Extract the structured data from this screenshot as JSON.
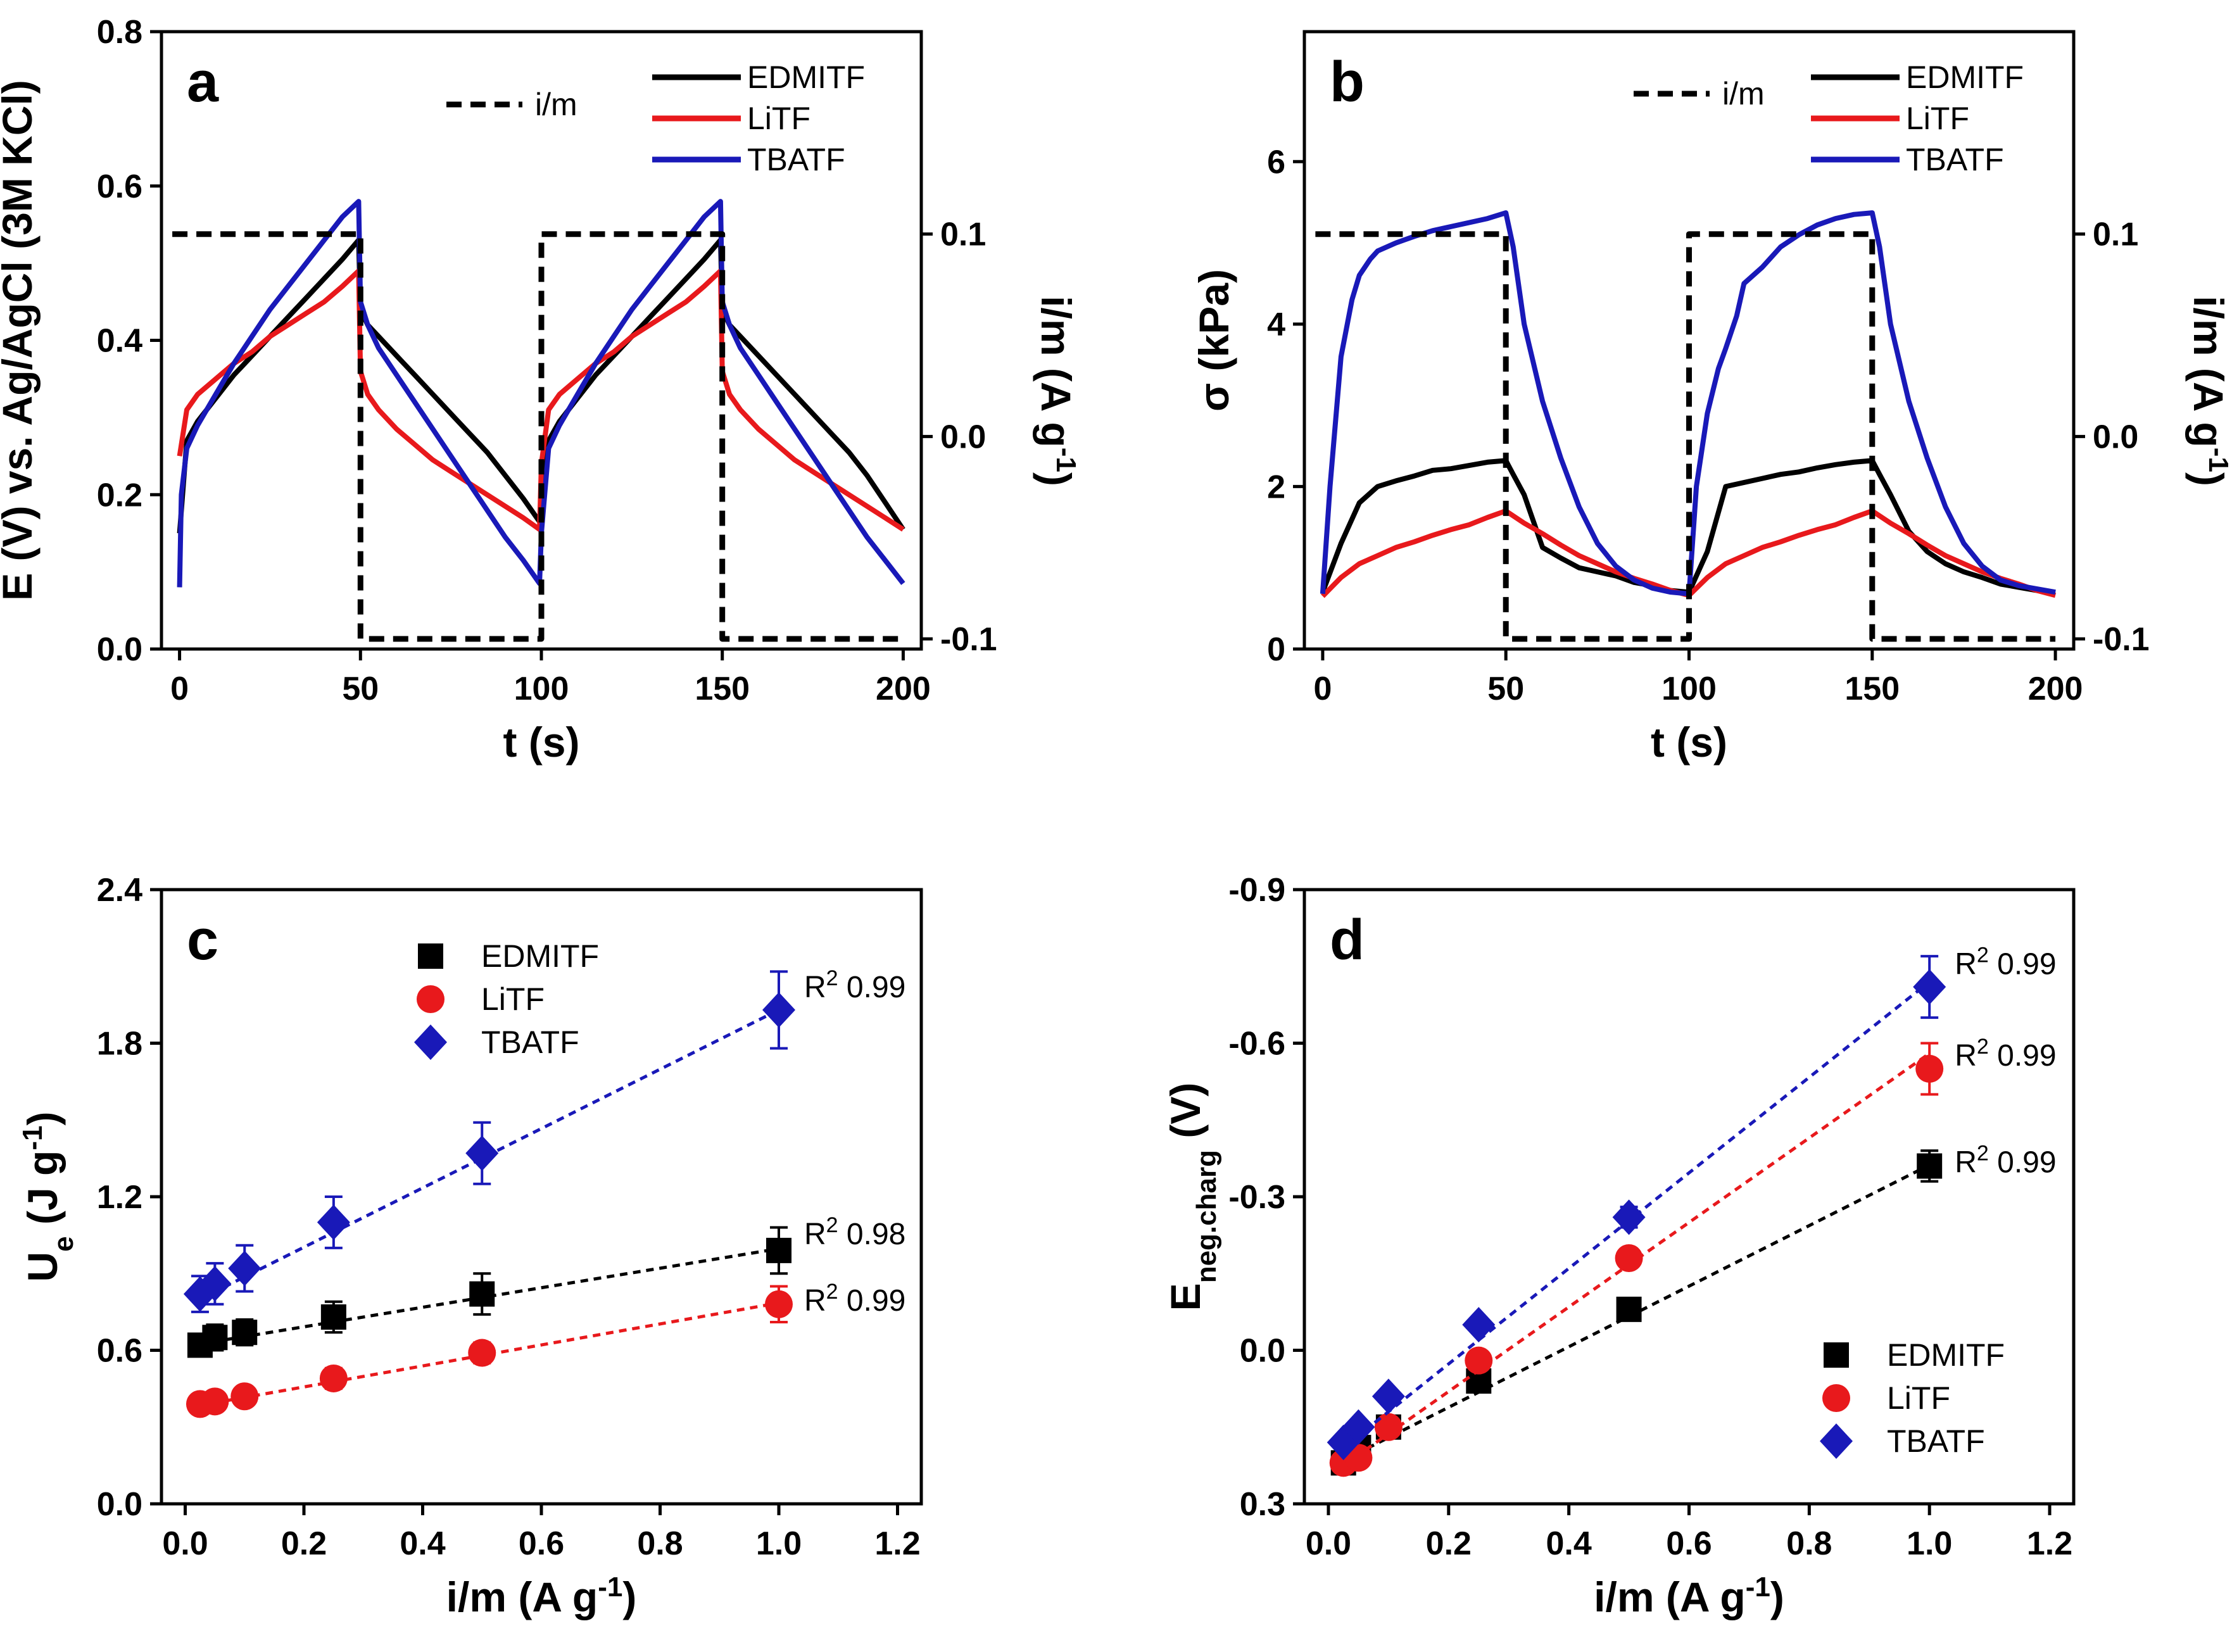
{
  "colors": {
    "EDMITF": "#000000",
    "LiTF": "#e8191c",
    "TBATF": "#1919b8",
    "im": "#000000"
  },
  "chart_data": [
    {
      "type": "line",
      "panel": "a",
      "xlabel": "t (s)",
      "ylabel": "E (V) vs. Ag/AgCl (3M KCl)",
      "y2label_main": "i/m (A g",
      "y2label_sup": "-1",
      "y2label_end": ")",
      "xlim": [
        -5,
        205
      ],
      "ylim": [
        0,
        0.8
      ],
      "y2lim": [
        -0.105,
        0.2
      ],
      "xticks": [
        "0",
        "50",
        "100",
        "150",
        "200"
      ],
      "yticks": [
        "0.0",
        "0.2",
        "0.4",
        "0.6",
        "0.8"
      ],
      "y2ticks": [
        "-0.1",
        "0.0",
        "0.1"
      ],
      "legend": [
        "i/m",
        "EDMITF",
        "LiTF",
        "TBATF"
      ],
      "series": [
        {
          "name": "EDMITF",
          "x": [
            0,
            2,
            5,
            10,
            15,
            20,
            25,
            30,
            35,
            40,
            45,
            49.5,
            50,
            52,
            55,
            60,
            65,
            70,
            75,
            80,
            85,
            90,
            95,
            99.5,
            100,
            102,
            105,
            110,
            115,
            120,
            125,
            130,
            135,
            140,
            145,
            149.5,
            150,
            152,
            155,
            160,
            165,
            170,
            175,
            180,
            185,
            190,
            195,
            200
          ],
          "y": [
            0.15,
            0.27,
            0.295,
            0.325,
            0.355,
            0.38,
            0.405,
            0.43,
            0.455,
            0.48,
            0.505,
            0.53,
            0.44,
            0.42,
            0.405,
            0.38,
            0.355,
            0.33,
            0.305,
            0.28,
            0.255,
            0.225,
            0.195,
            0.165,
            0.2,
            0.27,
            0.295,
            0.325,
            0.355,
            0.38,
            0.405,
            0.43,
            0.455,
            0.48,
            0.505,
            0.53,
            0.44,
            0.42,
            0.405,
            0.38,
            0.355,
            0.33,
            0.305,
            0.28,
            0.255,
            0.225,
            0.19,
            0.155
          ]
        },
        {
          "name": "LiTF",
          "x": [
            0,
            2,
            5,
            10,
            15,
            20,
            25,
            30,
            35,
            40,
            45,
            49.5,
            50,
            52,
            55,
            60,
            65,
            70,
            75,
            80,
            85,
            90,
            95,
            99.5,
            100,
            102,
            105,
            110,
            115,
            120,
            125,
            130,
            135,
            140,
            145,
            149.5,
            150,
            152,
            155,
            160,
            165,
            170,
            175,
            180,
            185,
            190,
            195,
            200
          ],
          "y": [
            0.25,
            0.31,
            0.33,
            0.35,
            0.37,
            0.385,
            0.405,
            0.42,
            0.435,
            0.45,
            0.47,
            0.49,
            0.36,
            0.33,
            0.31,
            0.285,
            0.265,
            0.245,
            0.23,
            0.215,
            0.2,
            0.185,
            0.17,
            0.155,
            0.24,
            0.31,
            0.33,
            0.35,
            0.37,
            0.385,
            0.405,
            0.42,
            0.435,
            0.45,
            0.47,
            0.49,
            0.36,
            0.33,
            0.31,
            0.285,
            0.265,
            0.245,
            0.23,
            0.215,
            0.2,
            0.185,
            0.17,
            0.155
          ]
        },
        {
          "name": "TBATF",
          "x": [
            0,
            0.5,
            2,
            5,
            10,
            15,
            20,
            25,
            30,
            35,
            40,
            45,
            49.5,
            50,
            52,
            55,
            60,
            65,
            70,
            75,
            80,
            85,
            90,
            95,
            99.5,
            100,
            102,
            105,
            110,
            115,
            120,
            125,
            130,
            135,
            140,
            145,
            149.5,
            150,
            152,
            155,
            160,
            165,
            170,
            175,
            180,
            185,
            190,
            195,
            200
          ],
          "y": [
            0.08,
            0.2,
            0.26,
            0.29,
            0.33,
            0.37,
            0.405,
            0.44,
            0.47,
            0.5,
            0.53,
            0.56,
            0.58,
            0.45,
            0.42,
            0.39,
            0.355,
            0.32,
            0.285,
            0.25,
            0.215,
            0.18,
            0.145,
            0.115,
            0.085,
            0.15,
            0.26,
            0.29,
            0.33,
            0.37,
            0.405,
            0.44,
            0.47,
            0.5,
            0.53,
            0.56,
            0.58,
            0.45,
            0.42,
            0.39,
            0.355,
            0.32,
            0.285,
            0.25,
            0.215,
            0.18,
            0.145,
            0.115,
            0.085
          ]
        },
        {
          "name": "i/m",
          "axis": "right",
          "x": [
            -2,
            50,
            50,
            100,
            100,
            150,
            150,
            200
          ],
          "y": [
            0.1,
            0.1,
            -0.1,
            -0.1,
            0.1,
            0.1,
            -0.1,
            -0.1
          ]
        }
      ]
    },
    {
      "type": "line",
      "panel": "b",
      "xlabel": "t (s)",
      "ylabel_main": "σ (kPa)",
      "y2label_main": "i/m (A g",
      "y2label_sup": "-1",
      "y2label_end": ")",
      "xlim": [
        -5,
        205
      ],
      "ylim": [
        0,
        7.6
      ],
      "y2lim": [
        -0.105,
        0.2
      ],
      "xticks": [
        "0",
        "50",
        "100",
        "150",
        "200"
      ],
      "yticks": [
        "0",
        "2",
        "4",
        "6"
      ],
      "y2ticks": [
        "-0.1",
        "0.0",
        "0.1"
      ],
      "legend": [
        "i/m",
        "EDMITF",
        "LiTF",
        "TBATF"
      ],
      "series": [
        {
          "name": "EDMITF",
          "x": [
            0,
            5,
            10,
            15,
            20,
            25,
            30,
            35,
            40,
            45,
            50,
            52,
            55,
            60,
            65,
            70,
            75,
            80,
            85,
            90,
            95,
            100,
            105,
            110,
            115,
            120,
            125,
            130,
            135,
            140,
            145,
            150,
            152,
            155,
            160,
            165,
            170,
            175,
            180,
            185,
            190,
            195,
            200
          ],
          "y": [
            0.7,
            1.3,
            1.8,
            2.0,
            2.07,
            2.13,
            2.2,
            2.22,
            2.26,
            2.3,
            2.32,
            2.15,
            1.9,
            1.25,
            1.12,
            1.0,
            0.95,
            0.9,
            0.82,
            0.78,
            0.72,
            0.7,
            1.2,
            2.0,
            2.05,
            2.1,
            2.15,
            2.18,
            2.23,
            2.27,
            2.3,
            2.32,
            2.15,
            1.9,
            1.45,
            1.2,
            1.05,
            0.95,
            0.88,
            0.8,
            0.76,
            0.72,
            0.7
          ]
        },
        {
          "name": "LiTF",
          "x": [
            0,
            5,
            10,
            15,
            20,
            25,
            30,
            35,
            40,
            45,
            50,
            55,
            60,
            65,
            70,
            75,
            80,
            85,
            90,
            95,
            100,
            105,
            110,
            115,
            120,
            125,
            130,
            135,
            140,
            145,
            150,
            155,
            160,
            165,
            170,
            175,
            180,
            185,
            190,
            195,
            200
          ],
          "y": [
            0.65,
            0.88,
            1.05,
            1.15,
            1.25,
            1.32,
            1.4,
            1.47,
            1.53,
            1.62,
            1.7,
            1.55,
            1.42,
            1.28,
            1.15,
            1.05,
            0.95,
            0.87,
            0.8,
            0.72,
            0.66,
            0.88,
            1.05,
            1.15,
            1.25,
            1.32,
            1.4,
            1.47,
            1.53,
            1.62,
            1.7,
            1.55,
            1.42,
            1.28,
            1.15,
            1.05,
            0.95,
            0.87,
            0.8,
            0.72,
            0.66
          ]
        },
        {
          "name": "TBATF",
          "x": [
            0,
            2,
            5,
            8,
            10,
            13,
            15,
            20,
            25,
            30,
            35,
            40,
            45,
            50,
            52,
            55,
            60,
            65,
            70,
            75,
            80,
            85,
            90,
            95,
            100,
            102,
            105,
            108,
            110,
            113,
            115,
            120,
            125,
            130,
            135,
            140,
            145,
            150,
            152,
            155,
            160,
            165,
            170,
            175,
            180,
            185,
            190,
            195,
            200
          ],
          "y": [
            0.68,
            2.0,
            3.6,
            4.3,
            4.6,
            4.8,
            4.9,
            5.0,
            5.08,
            5.15,
            5.2,
            5.25,
            5.3,
            5.37,
            4.95,
            4.0,
            3.05,
            2.35,
            1.75,
            1.3,
            1.02,
            0.85,
            0.75,
            0.7,
            0.68,
            2.0,
            2.9,
            3.45,
            3.7,
            4.1,
            4.5,
            4.7,
            4.95,
            5.1,
            5.22,
            5.3,
            5.35,
            5.37,
            4.95,
            4.0,
            3.05,
            2.35,
            1.75,
            1.3,
            1.02,
            0.85,
            0.78,
            0.74,
            0.7
          ]
        },
        {
          "name": "i/m",
          "axis": "right",
          "x": [
            -2,
            50,
            50,
            100,
            100,
            150,
            150,
            200
          ],
          "y": [
            0.1,
            0.1,
            -0.1,
            -0.1,
            0.1,
            0.1,
            -0.1,
            -0.1
          ]
        }
      ]
    },
    {
      "type": "scatter",
      "panel": "c",
      "xlabel": "i/m (A g",
      "xlabel_sup": "-1",
      "xlabel_end": ")",
      "ylabel_main": "U",
      "ylabel_sub": "e",
      "ylabel_rest": " (J g",
      "ylabel_sup": "-1",
      "ylabel_end": ")",
      "xlim": [
        -0.04,
        1.24
      ],
      "ylim": [
        0,
        2.4
      ],
      "xticks": [
        "0.0",
        "0.2",
        "0.4",
        "0.6",
        "0.8",
        "1.0",
        "1.2"
      ],
      "yticks": [
        "0.0",
        "0.6",
        "1.2",
        "1.8",
        "2.4"
      ],
      "x": [
        0.025,
        0.05,
        0.1,
        0.25,
        0.5,
        1.0
      ],
      "legend": [
        "EDMITF",
        "LiTF",
        "TBATF"
      ],
      "series": [
        {
          "name": "EDMITF",
          "marker": "square",
          "values": [
            0.62,
            0.65,
            0.67,
            0.73,
            0.82,
            0.99
          ],
          "errors": [
            0.04,
            0.05,
            0.05,
            0.06,
            0.08,
            0.09
          ],
          "fit": [
            0.625,
            0.997
          ],
          "r2_main": "R",
          "r2_sup": "2",
          "r2_val": " 0.98"
        },
        {
          "name": "LiTF",
          "marker": "circle",
          "values": [
            0.39,
            0.4,
            0.42,
            0.49,
            0.59,
            0.78
          ],
          "errors": [
            0.02,
            0.02,
            0.03,
            0.04,
            0.04,
            0.07
          ],
          "fit": [
            0.385,
            0.785
          ],
          "r2_main": "R",
          "r2_sup": "2",
          "r2_val": " 0.99"
        },
        {
          "name": "TBATF",
          "marker": "diamond",
          "values": [
            0.82,
            0.86,
            0.92,
            1.1,
            1.37,
            1.93
          ],
          "errors": [
            0.07,
            0.08,
            0.09,
            0.1,
            0.12,
            0.15
          ],
          "fit": [
            0.8,
            1.93
          ],
          "r2_main": "R",
          "r2_sup": "2",
          "r2_val": " 0.99"
        }
      ]
    },
    {
      "type": "scatter",
      "panel": "d",
      "xlabel": "i/m (A g",
      "xlabel_sup": "-1",
      "xlabel_end": ")",
      "ylabel_main": "E",
      "ylabel_sub": "neg.charg",
      "ylabel_rest": " (V)",
      "xlim": [
        -0.04,
        1.24
      ],
      "ylim": [
        0.3,
        -0.9
      ],
      "xticks": [
        "0.0",
        "0.2",
        "0.4",
        "0.6",
        "0.8",
        "1.0",
        "1.2"
      ],
      "yticks": [
        "0.3",
        "0.0",
        "-0.3",
        "-0.6",
        "-0.9"
      ],
      "x": [
        0.025,
        0.05,
        0.1,
        0.25,
        0.5,
        1.0
      ],
      "legend": [
        "EDMITF",
        "LiTF",
        "TBATF"
      ],
      "series": [
        {
          "name": "EDMITF",
          "marker": "square",
          "values": [
            0.22,
            0.19,
            0.15,
            0.06,
            -0.08,
            -0.36
          ],
          "errors": [
            0.01,
            0.01,
            0.01,
            0.01,
            0.01,
            0.03
          ],
          "fit": [
            0.215,
            -0.362
          ],
          "r2_main": "R",
          "r2_sup": "2",
          "r2_val": " 0.99"
        },
        {
          "name": "LiTF",
          "marker": "circle",
          "values": [
            0.22,
            0.21,
            0.15,
            0.02,
            -0.18,
            -0.55
          ],
          "errors": [
            0.01,
            0.01,
            0.01,
            0.01,
            0.01,
            0.05
          ],
          "fit": [
            0.225,
            -0.58
          ],
          "r2_main": "R",
          "r2_sup": "2",
          "r2_val": " 0.99"
        },
        {
          "name": "TBATF",
          "marker": "diamond",
          "values": [
            0.18,
            0.15,
            0.09,
            -0.05,
            -0.26,
            -0.71
          ],
          "errors": [
            0.01,
            0.01,
            0.01,
            0.01,
            0.02,
            0.06
          ],
          "fit": [
            0.19,
            -0.72
          ],
          "r2_main": "R",
          "r2_sup": "2",
          "r2_val": " 0.99"
        }
      ]
    }
  ]
}
